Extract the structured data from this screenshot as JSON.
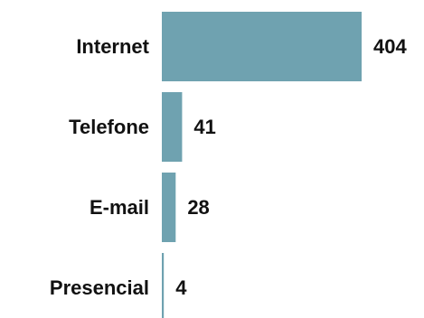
{
  "chart_data": {
    "type": "bar",
    "orientation": "horizontal",
    "categories": [
      "Internet",
      "Telefone",
      "E-mail",
      "Presencial"
    ],
    "values": [
      404,
      41,
      28,
      4
    ],
    "data_labels": [
      "404",
      "41",
      "28",
      "4"
    ],
    "title": "",
    "xlabel": "",
    "ylabel": "",
    "xlim": [
      0,
      404
    ],
    "grid": false,
    "legend": "none",
    "bar_color": "#6fa2b0"
  }
}
